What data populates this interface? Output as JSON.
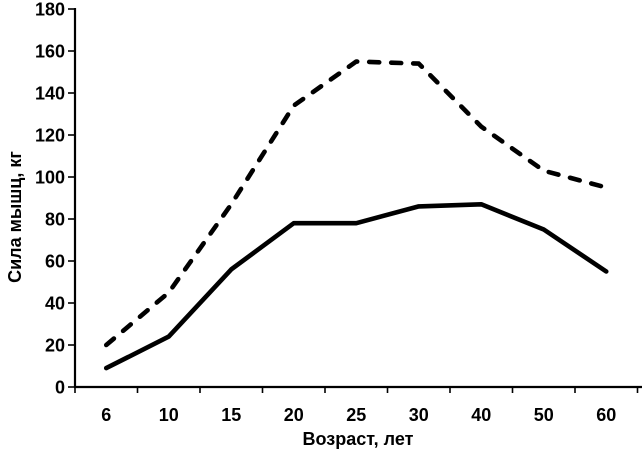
{
  "chart_data": {
    "type": "line",
    "title": "",
    "xlabel": "Возраст, лет",
    "ylabel": "Сила мышц, кг",
    "categories": [
      "6",
      "10",
      "15",
      "20",
      "25",
      "30",
      "40",
      "50",
      "60"
    ],
    "series": [
      {
        "name": "dashed-upper-curve",
        "style": "dashed",
        "values": [
          20,
          45,
          87,
          134,
          155,
          154,
          124,
          103,
          95
        ]
      },
      {
        "name": "solid-lower-curve",
        "style": "solid",
        "values": [
          9,
          24,
          56,
          78,
          78,
          86,
          87,
          75,
          55
        ]
      }
    ],
    "ylim": [
      0,
      180
    ],
    "ytick_step": 20,
    "yticks": [
      0,
      20,
      40,
      60,
      80,
      100,
      120,
      140,
      160,
      180
    ],
    "grid": false,
    "legend_position": "none",
    "line_color": "#000000",
    "background_color": "#ffffff"
  }
}
